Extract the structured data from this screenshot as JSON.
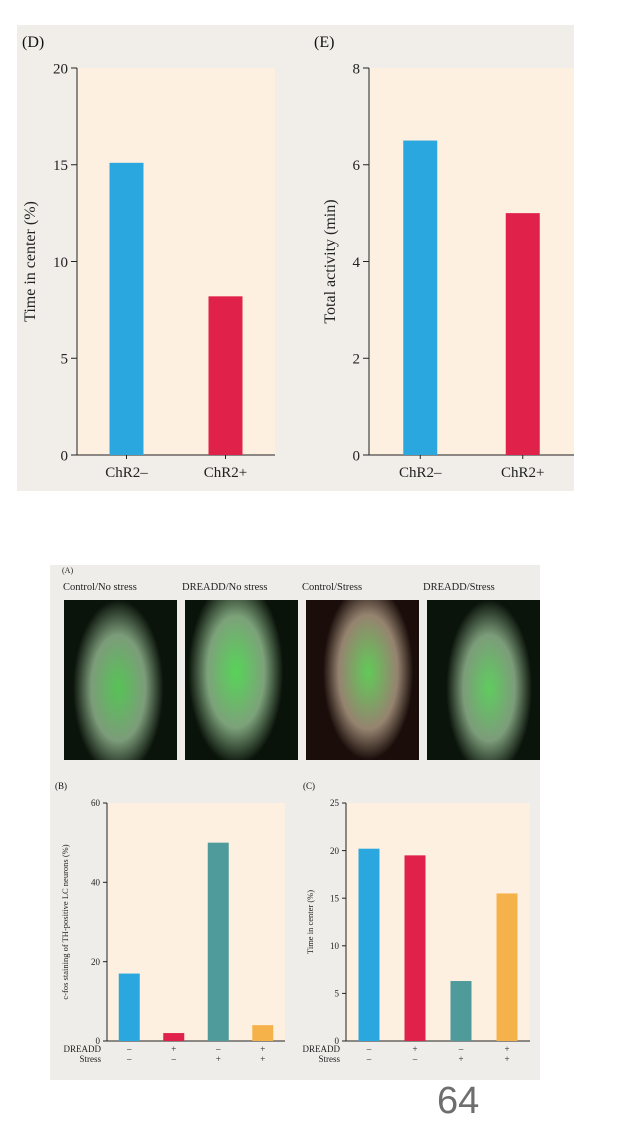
{
  "chart_data": [
    {
      "panel": "(D)",
      "type": "bar",
      "categories": [
        "ChR2–",
        "ChR2+"
      ],
      "values": [
        15.1,
        8.2
      ],
      "colors": [
        "#2aa7de",
        "#e0224a"
      ],
      "ylabel": "Time in center (%)",
      "ylim": [
        0,
        20
      ],
      "yticks": [
        0,
        5,
        10,
        15,
        20
      ],
      "background": "#fdf0e1"
    },
    {
      "panel": "(E)",
      "type": "bar",
      "categories": [
        "ChR2–",
        "ChR2+"
      ],
      "values": [
        6.5,
        5.0
      ],
      "colors": [
        "#2aa7de",
        "#e0224a"
      ],
      "ylabel": "Total activity (min)",
      "ylim": [
        0,
        8
      ],
      "yticks": [
        0,
        2,
        4,
        6,
        8
      ],
      "background": "#fdf0e1"
    },
    {
      "panel": "(B)",
      "type": "bar",
      "values": [
        17,
        2,
        50,
        4
      ],
      "colors": [
        "#2aa7de",
        "#e0224a",
        "#4f9a9a",
        "#f6b24a"
      ],
      "ylabel": "c-fos staining of TH-positive LC neurons (%)",
      "ylim": [
        0,
        60
      ],
      "yticks": [
        0,
        20,
        40,
        60
      ],
      "condition_rows": [
        {
          "name": "DREADD",
          "marks": [
            "–",
            "+",
            "–",
            "+"
          ]
        },
        {
          "name": "Stress",
          "marks": [
            "–",
            "–",
            "+",
            "+"
          ]
        }
      ],
      "background": "#fdf0e1"
    },
    {
      "panel": "(C)",
      "type": "bar",
      "values": [
        20.2,
        19.5,
        6.3,
        15.5
      ],
      "colors": [
        "#2aa7de",
        "#e0224a",
        "#4f9a9a",
        "#f6b24a"
      ],
      "ylabel": "Time in center (%)",
      "ylim": [
        0,
        25
      ],
      "yticks": [
        0,
        5,
        10,
        15,
        20,
        25
      ],
      "condition_rows": [
        {
          "name": "DREADD",
          "marks": [
            "–",
            "+",
            "–",
            "+"
          ]
        },
        {
          "name": "Stress",
          "marks": [
            "–",
            "–",
            "+",
            "+"
          ]
        }
      ],
      "background": "#fdf0e1"
    }
  ],
  "micrographs": {
    "panel": "(A)",
    "labels": [
      "Control/No stress",
      "DREADD/No stress",
      "Control/Stress",
      "DREADD/Stress"
    ]
  },
  "page_number": "64"
}
